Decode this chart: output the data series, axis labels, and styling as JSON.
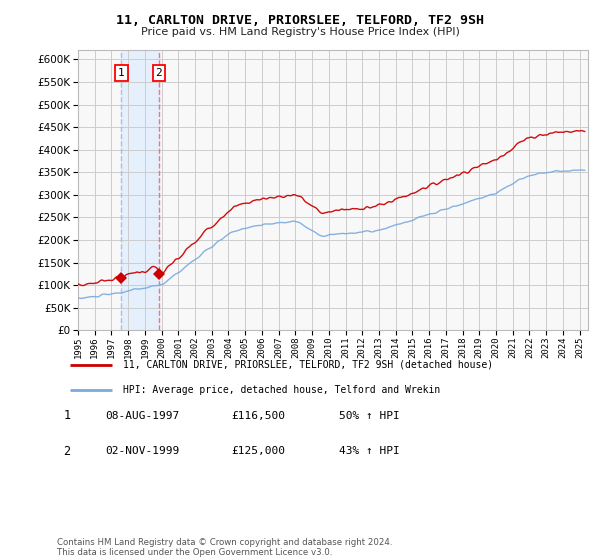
{
  "title": "11, CARLTON DRIVE, PRIORSLEE, TELFORD, TF2 9SH",
  "subtitle": "Price paid vs. HM Land Registry's House Price Index (HPI)",
  "legend_label1": "11, CARLTON DRIVE, PRIORSLEE, TELFORD, TF2 9SH (detached house)",
  "legend_label2": "HPI: Average price, detached house, Telford and Wrekin",
  "annotation1_label": "1",
  "annotation1_date": "08-AUG-1997",
  "annotation1_price": "£116,500",
  "annotation1_hpi": "50% ↑ HPI",
  "annotation2_label": "2",
  "annotation2_date": "02-NOV-1999",
  "annotation2_price": "£125,000",
  "annotation2_hpi": "43% ↑ HPI",
  "footer": "Contains HM Land Registry data © Crown copyright and database right 2024.\nThis data is licensed under the Open Government Licence v3.0.",
  "line1_color": "#cc0000",
  "line2_color": "#7aaadd",
  "vline1_color": "#aabbdd",
  "vline2_color": "#ff6666",
  "dot_color": "#cc0000",
  "shade_color": "#ddeeff",
  "background_color": "#ffffff",
  "plot_bg_color": "#f8f8f8",
  "grid_color": "#cccccc",
  "ylim": [
    0,
    620000
  ],
  "yticks": [
    0,
    50000,
    100000,
    150000,
    200000,
    250000,
    300000,
    350000,
    400000,
    450000,
    500000,
    550000,
    600000
  ],
  "sale1_year": 1997.6,
  "sale1_price": 116500,
  "sale2_year": 1999.83,
  "sale2_price": 125000,
  "xmin": 1995.0,
  "xmax": 2025.5
}
